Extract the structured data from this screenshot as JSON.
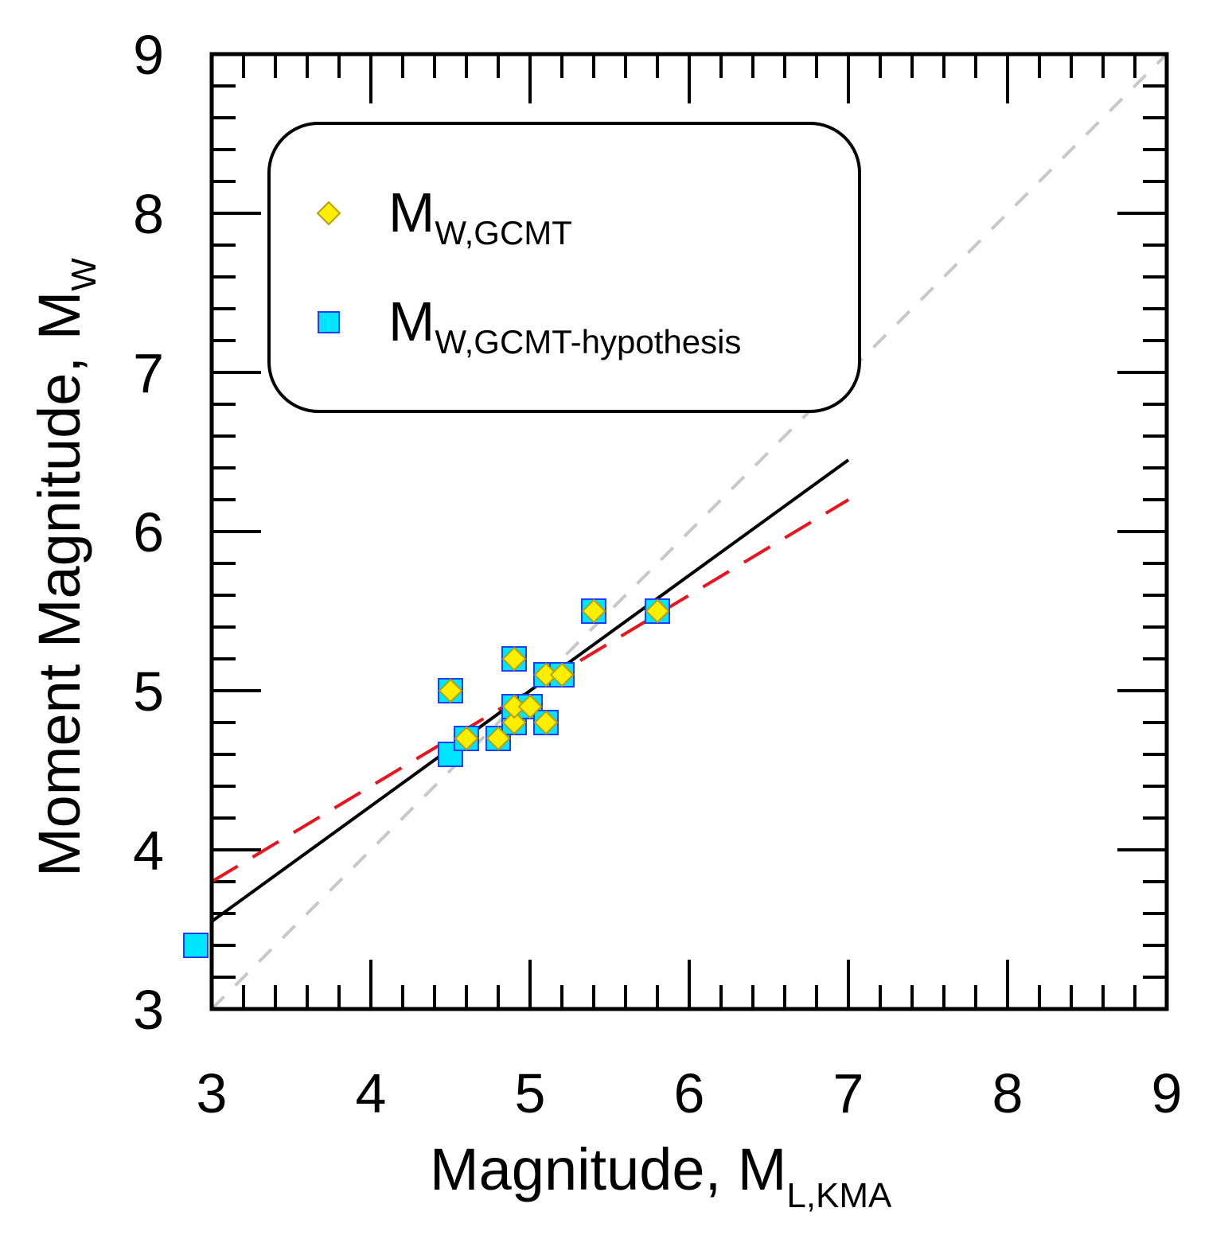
{
  "chart_data": {
    "type": "scatter",
    "xlabel": {
      "main": "Magnitude, M",
      "sub": "L,KMA"
    },
    "ylabel": {
      "main": "Moment Magnitude, M",
      "sub": "W"
    },
    "xlim": [
      3,
      9
    ],
    "ylim": [
      3,
      9
    ],
    "xticks": [
      "3",
      "4",
      "5",
      "6",
      "7",
      "8",
      "9"
    ],
    "yticks": [
      "3",
      "4",
      "5",
      "6",
      "7",
      "8",
      "9"
    ],
    "legend_position": "top-left",
    "series": [
      {
        "name": "M_W,GCMT-hypothesis",
        "legend_main": "M",
        "legend_sub": "W,GCMT-hypothesis",
        "marker": "square",
        "color": "#00e5ff",
        "edge_color": "#1f3cff",
        "points": [
          [
            2.9,
            3.4
          ],
          [
            4.5,
            4.6
          ],
          [
            4.5,
            5.0
          ],
          [
            4.6,
            4.7
          ],
          [
            4.8,
            4.7
          ],
          [
            4.9,
            4.8
          ],
          [
            4.9,
            4.9
          ],
          [
            4.9,
            5.2
          ],
          [
            5.0,
            4.9
          ],
          [
            5.1,
            4.8
          ],
          [
            5.1,
            5.1
          ],
          [
            5.2,
            5.1
          ],
          [
            5.4,
            5.5
          ],
          [
            5.8,
            5.5
          ]
        ]
      },
      {
        "name": "M_W,GCMT",
        "legend_main": "M",
        "legend_sub": "W,GCMT",
        "marker": "diamond",
        "color": "#ffee00",
        "edge_color": "#b8a000",
        "points": [
          [
            4.5,
            5.0
          ],
          [
            4.6,
            4.7
          ],
          [
            4.8,
            4.7
          ],
          [
            4.9,
            4.8
          ],
          [
            4.9,
            4.9
          ],
          [
            4.9,
            5.2
          ],
          [
            5.0,
            4.9
          ],
          [
            5.1,
            4.8
          ],
          [
            5.1,
            5.1
          ],
          [
            5.2,
            5.1
          ],
          [
            5.4,
            5.5
          ],
          [
            5.8,
            5.5
          ]
        ]
      }
    ],
    "lines": [
      {
        "name": "one-to-one",
        "style": "dashed",
        "color": "#c8c8c8",
        "x": [
          3,
          9
        ],
        "y": [
          3,
          9
        ]
      },
      {
        "name": "fit-hypothesis",
        "style": "solid",
        "color": "#000000",
        "x": [
          3,
          7
        ],
        "y": [
          3.55,
          6.45
        ]
      },
      {
        "name": "fit-gcmt",
        "style": "dashed",
        "color": "#e8141e",
        "x": [
          3,
          7
        ],
        "y": [
          3.8,
          6.2
        ]
      }
    ]
  }
}
